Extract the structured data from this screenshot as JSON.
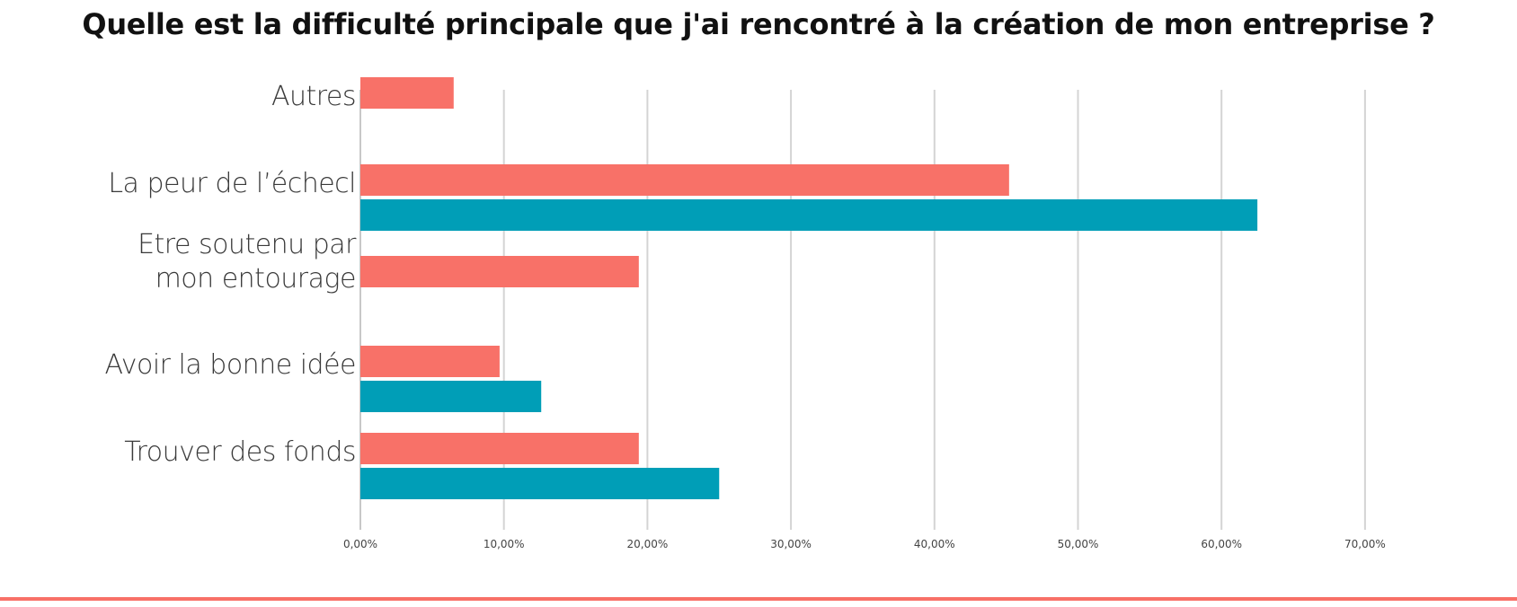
{
  "title": "Quelle est la difficulté principale que j'ai rencontré à la création de mon entreprise ?",
  "chart_data": {
    "type": "bar",
    "orientation": "horizontal",
    "title": "Quelle est la difficulté principale que j'ai rencontré à la création de mon entreprise ?",
    "categories": [
      [
        "Autres"
      ],
      [
        "La peur de l’échecl"
      ],
      [
        "Etre soutenu par",
        "mon entourage"
      ],
      [
        "Avoir la bonne idée"
      ],
      [
        "Trouver des fonds"
      ]
    ],
    "series": [
      {
        "color": "#f87168",
        "values": [
          6.5,
          45.2,
          19.4,
          9.7,
          19.4
        ]
      },
      {
        "color": "#009eb7",
        "values": [
          null,
          62.5,
          null,
          12.6,
          25.0
        ]
      }
    ],
    "xlim": [
      0,
      70
    ],
    "xticks": [
      "0,00%",
      "10,00%",
      "20,00%",
      "30,00%",
      "40,00%",
      "50,00%",
      "60,00%",
      "70,00%"
    ],
    "grid": true,
    "legend": "none"
  },
  "colors": {
    "grid": "#d4d4d4",
    "axis": "#c8c8c8",
    "category_text": "#3a3a3a",
    "tick_text": "#444444",
    "accent_rule": "#f87168"
  }
}
